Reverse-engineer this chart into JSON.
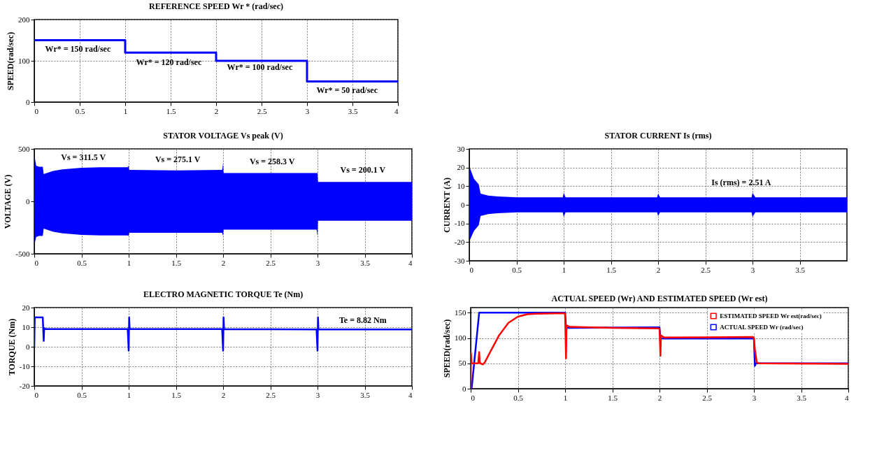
{
  "chart_data": [
    {
      "type": "step",
      "title": "REFERENCE SPEED Wr * (rad/sec)",
      "ylabel": "SPEED(rad/sec)",
      "x": [
        0,
        1,
        2,
        3,
        4
      ],
      "series": [
        {
          "color": "#0000ff",
          "values": [
            150,
            120,
            100,
            50,
            50
          ]
        }
      ],
      "xlim": [
        0,
        4
      ],
      "ylim": [
        0,
        200
      ],
      "xticks": [
        0,
        0.5,
        1,
        1.5,
        2,
        2.5,
        3,
        3.5,
        4
      ],
      "yticks": [
        0,
        100,
        200
      ],
      "grid": true,
      "annotations": [
        "Wr* = 150 rad/sec",
        "Wr* = 120 rad/sec",
        "Wr* = 100 rad/sec",
        "Wr* = 50 rad/sec"
      ]
    },
    {
      "type": "line",
      "title": "STATOR VOLTAGE Vs peak (V)",
      "ylabel": "VOLTAGE (V)",
      "x": [
        0,
        0.005,
        0.02,
        0.05,
        0.09,
        0.1,
        0.2,
        0.3,
        0.5,
        0.7,
        0.99,
        1.0,
        1.005,
        1.5,
        1.99,
        2.0,
        2.005,
        2.5,
        2.99,
        3.0,
        3.005,
        3.5,
        4
      ],
      "series": [
        {
          "color": "#0000ff",
          "values": [
            0,
            0,
            0,
            0,
            0,
            0,
            0,
            0,
            0,
            0,
            0,
            0,
            0,
            0,
            0,
            0,
            0,
            0,
            0,
            0,
            0,
            0,
            0
          ],
          "upper": [
            0,
            420,
            340,
            330,
            330,
            260,
            290,
            305,
            320,
            325,
            325,
            340,
            300,
            295,
            300,
            360,
            270,
            270,
            270,
            270,
            185,
            185,
            185
          ],
          "lower": [
            0,
            -400,
            -340,
            -330,
            -330,
            -260,
            -290,
            -305,
            -320,
            -325,
            -325,
            -330,
            -300,
            -300,
            -300,
            -330,
            -270,
            -270,
            -270,
            -330,
            -185,
            -185,
            -185
          ]
        }
      ],
      "xlim": [
        0,
        4
      ],
      "ylim": [
        -500,
        500
      ],
      "xticks": [
        0,
        0.5,
        1,
        1.5,
        2,
        2.5,
        3,
        3.5,
        4
      ],
      "yticks": [
        -500,
        0,
        500
      ],
      "grid": true,
      "annotations": [
        "Vs = 311.5 V",
        "Vs = 275.1 V",
        "Vs = 258.3 V",
        "Vs = 200.1 V"
      ]
    },
    {
      "type": "line",
      "title": "STATOR CURRENT Is (rms)",
      "ylabel": "CURRENT (A)",
      "x": [
        0,
        0.005,
        0.05,
        0.1,
        0.12,
        0.2,
        0.3,
        0.5,
        0.99,
        1.0,
        1.02,
        1.99,
        2.0,
        2.02,
        2.99,
        3.0,
        3.03,
        4
      ],
      "series": [
        {
          "color": "#0000ff",
          "values": [
            0,
            0,
            0,
            0,
            0,
            0,
            0,
            0,
            0,
            0,
            0,
            0,
            0,
            0,
            0,
            0,
            0,
            0
          ],
          "upper": [
            16,
            20,
            14,
            11,
            6,
            5,
            4.5,
            4,
            4,
            6.5,
            4,
            4,
            6,
            4,
            4,
            6.5,
            4,
            4
          ],
          "lower": [
            -16,
            -19,
            -14,
            -11,
            -6,
            -5,
            -4.5,
            -4,
            -4,
            -6.5,
            -4,
            -4,
            -6,
            -4,
            -4,
            -6.5,
            -4,
            -4
          ]
        }
      ],
      "xlim": [
        0,
        4
      ],
      "ylim": [
        -30,
        30
      ],
      "xticks": [
        0,
        0.5,
        1,
        1.5,
        2,
        2.5,
        3,
        3.5
      ],
      "yticks": [
        -30,
        -20,
        -10,
        0,
        10,
        20,
        30
      ],
      "grid": true,
      "annotations": [
        "Is (rms) = 2.51 A"
      ]
    },
    {
      "type": "line",
      "title": "ELECTRO MAGNETIC TORQUE Te (Nm)",
      "ylabel": "TORQUE (Nm)",
      "x": [
        0,
        0.005,
        0.08,
        0.09,
        0.1,
        0.105,
        0.12,
        0.99,
        1.0,
        1.005,
        1.01,
        1.99,
        2.0,
        2.005,
        2.01,
        2.99,
        3.0,
        3.005,
        3.01,
        4
      ],
      "series": [
        {
          "color": "#0000ff",
          "values": [
            0,
            15,
            15,
            15,
            3,
            9.5,
            9,
            9,
            -2,
            15,
            9,
            9,
            -2,
            15,
            9,
            8.8,
            -2,
            15,
            8.8,
            8.8
          ]
        }
      ],
      "xlim": [
        0,
        4
      ],
      "ylim": [
        -20,
        20
      ],
      "xticks": [
        0,
        0.5,
        1,
        1.5,
        2,
        2.5,
        3,
        3.5,
        4
      ],
      "yticks": [
        -20,
        -10,
        0,
        10,
        20
      ],
      "grid": true,
      "annotations": [
        "Te = 8.82 Nm"
      ]
    },
    {
      "type": "line",
      "title": "ACTUAL SPEED (Wr) AND ESTIMATED SPEED (Wr est)",
      "ylabel": "SPEED(rad/sec)",
      "series": [
        {
          "name": "ESTIMATED SPEED Wr est(rad/sec)",
          "color": "#ff0000",
          "x": [
            0,
            0.003,
            0.01,
            0.08,
            0.09,
            0.095,
            0.1,
            0.13,
            0.15,
            0.2,
            0.3,
            0.4,
            0.5,
            0.6,
            0.7,
            0.99,
            1.0,
            1.01,
            1.015,
            1.05,
            1.5,
            1.99,
            2.0,
            2.01,
            2.015,
            2.05,
            2.99,
            3.0,
            3.01,
            3.03,
            3.05,
            4
          ],
          "values": [
            0,
            70,
            50,
            50,
            72,
            55,
            50,
            48,
            52,
            70,
            105,
            130,
            142,
            147,
            148,
            149,
            148,
            60,
            125,
            122,
            120,
            119,
            118,
            65,
            105,
            101,
            102,
            100,
            78,
            52,
            50,
            49
          ]
        },
        {
          "name": "ACTUAL SPEED Wr (rad/sec)",
          "color": "#0000ff",
          "x": [
            0,
            0.01,
            0.09,
            0.99,
            1.0,
            1.01,
            1.99,
            2.0,
            2.01,
            2.99,
            3.0,
            3.01,
            3.02,
            4
          ],
          "values": [
            0,
            0,
            150,
            150,
            150,
            120,
            121,
            121,
            99,
            99,
            99,
            45,
            50,
            50
          ]
        }
      ],
      "xlim": [
        0,
        4
      ],
      "ylim": [
        0,
        160
      ],
      "xticks": [
        0,
        0.5,
        1,
        1.5,
        2,
        2.5,
        3,
        3.5,
        4
      ],
      "yticks": [
        0,
        50,
        100,
        150
      ],
      "grid": true,
      "legend": "top right"
    }
  ]
}
